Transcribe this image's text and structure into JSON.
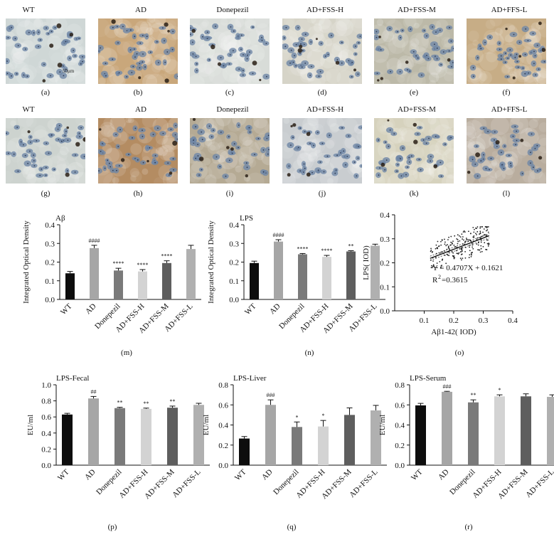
{
  "micrographs": {
    "row1": [
      {
        "title": "WT",
        "label": "(a)",
        "tone": "#cfd7d6",
        "scale": "50μm"
      },
      {
        "title": "AD",
        "label": "(b)",
        "tone": "#c9a77b",
        "scale": ""
      },
      {
        "title": "Donepezil",
        "label": "(c)",
        "tone": "#d8dcd8",
        "scale": ""
      },
      {
        "title": "AD+FSS-H",
        "label": "(d)",
        "tone": "#d6d4c8",
        "scale": ""
      },
      {
        "title": "AD+FSS-M",
        "label": "(e)",
        "tone": "#bcb9a8",
        "scale": ""
      },
      {
        "title": "AD+FFS-L",
        "label": "(f)",
        "tone": "#c7ad86",
        "scale": ""
      }
    ],
    "row2": [
      {
        "title": "WT",
        "label": "(g)",
        "tone": "#cdd3cf",
        "scale": ""
      },
      {
        "title": "AD",
        "label": "(h)",
        "tone": "#b48c62",
        "scale": ""
      },
      {
        "title": "Donepezil",
        "label": "(i)",
        "tone": "#b5aa94",
        "scale": ""
      },
      {
        "title": "AD+FSS-H",
        "label": "(j)",
        "tone": "#c9cdd0",
        "scale": ""
      },
      {
        "title": "AD+FSS-M",
        "label": "(k)",
        "tone": "#d6d2bd",
        "scale": ""
      },
      {
        "title": "AD+FFS-L",
        "label": "(l)",
        "tone": "#b9ad9e",
        "scale": ""
      }
    ]
  },
  "colors": {
    "bars": [
      "#0d0d0d",
      "#a6a6a6",
      "#7a7a7a",
      "#d3d3d3",
      "#5e5e5e",
      "#b0b0b0"
    ]
  },
  "chart_data": [
    {
      "id": "m",
      "type": "bar",
      "title": "Aβ",
      "label": "(m)",
      "ylabel": "Integrated Optical Density",
      "categories": [
        "WT",
        "AD",
        "Donepezil",
        "AD+FSS-H",
        "AD+FSS-M",
        "AD+FSS-L"
      ],
      "values": [
        0.14,
        0.275,
        0.155,
        0.15,
        0.195,
        0.27
      ],
      "errors": [
        0.01,
        0.015,
        0.012,
        0.01,
        0.012,
        0.02
      ],
      "annotations": [
        "",
        "####",
        "****",
        "****",
        "****",
        ""
      ],
      "ylim": [
        0,
        0.4
      ],
      "yticks": [
        "0.0",
        "0.1",
        "0.2",
        "0.3",
        "0.4"
      ]
    },
    {
      "id": "n",
      "type": "bar",
      "title": "LPS",
      "label": "(n)",
      "ylabel": "Integrated Optical Density",
      "categories": [
        "WT",
        "AD",
        "Donepezil",
        "AD+FSS-H",
        "AD+FSS-M",
        "AD+FSS-L"
      ],
      "values": [
        0.195,
        0.31,
        0.242,
        0.228,
        0.257,
        0.288
      ],
      "errors": [
        0.01,
        0.01,
        0.004,
        0.008,
        0.004,
        0.008
      ],
      "annotations": [
        "",
        "####",
        "****",
        "****",
        "**",
        ""
      ],
      "ylim": [
        0,
        0.4
      ],
      "yticks": [
        "0.0",
        "0.1",
        "0.2",
        "0.3",
        "0.4"
      ]
    },
    {
      "id": "o",
      "type": "scatter",
      "label": "(o)",
      "xlabel": "Aβ1-42( IOD)",
      "ylabel": "LPS( IOD)",
      "xlim": [
        0,
        0.4
      ],
      "ylim": [
        0,
        0.4
      ],
      "xticks": [
        "0.1",
        "0.2",
        "0.3",
        "0.4"
      ],
      "yticks": [
        "0.0",
        "0.1",
        "0.2",
        "0.3",
        "0.4"
      ],
      "equation": "Y = 0.4707X + 0.1621",
      "r2_prefix": "R",
      "r2_sup": "2",
      "r2_value": "=0.3615",
      "slope": 0.4707,
      "intercept": 0.1621,
      "x_range": [
        0.12,
        0.32
      ],
      "y_range": [
        0.18,
        0.35
      ]
    },
    {
      "id": "p",
      "type": "bar",
      "title": "LPS-Fecal",
      "label": "(p)",
      "ylabel": "EU/ml",
      "categories": [
        "WT",
        "AD",
        "Donepezil",
        "AD+FSS-H",
        "AD+FSS-M",
        "AD+FSS-L"
      ],
      "values": [
        0.63,
        0.83,
        0.71,
        0.7,
        0.715,
        0.75
      ],
      "errors": [
        0.015,
        0.025,
        0.01,
        0.01,
        0.02,
        0.02
      ],
      "annotations": [
        "",
        "##",
        "**",
        "**",
        "**",
        ""
      ],
      "ylim": [
        0,
        1.0
      ],
      "yticks": [
        "0.0",
        "0.2",
        "0.4",
        "0.6",
        "0.8",
        "1.0"
      ]
    },
    {
      "id": "q",
      "type": "bar",
      "title": "LPS-Liver",
      "label": "(q)",
      "ylabel": "EU/ml",
      "categories": [
        "WT",
        "AD",
        "Donepezil",
        "AD+FSS-H",
        "AD+FSS-M",
        "AD+FSS-L"
      ],
      "values": [
        0.265,
        0.6,
        0.38,
        0.385,
        0.5,
        0.545
      ],
      "errors": [
        0.02,
        0.05,
        0.05,
        0.06,
        0.07,
        0.05
      ],
      "annotations": [
        "",
        "###",
        "*",
        "*",
        "",
        ""
      ],
      "ylim": [
        0,
        0.8
      ],
      "yticks": [
        "0.0",
        "0.2",
        "0.4",
        "0.6",
        "0.8"
      ]
    },
    {
      "id": "r",
      "type": "bar",
      "title": "LPS-Serum",
      "label": "(r)",
      "ylabel": "EU/ml",
      "categories": [
        "WT",
        "AD",
        "Donepezil",
        "AD+FSS-H",
        "AD+FSS-M",
        "AD+FSS-L"
      ],
      "values": [
        0.595,
        0.73,
        0.625,
        0.685,
        0.685,
        0.68
      ],
      "errors": [
        0.02,
        0.005,
        0.025,
        0.015,
        0.025,
        0.02
      ],
      "annotations": [
        "",
        "###",
        "**",
        "*",
        "",
        ""
      ],
      "ylim": [
        0,
        0.8
      ],
      "yticks": [
        "0.0",
        "0.2",
        "0.4",
        "0.6",
        "0.8"
      ]
    }
  ]
}
